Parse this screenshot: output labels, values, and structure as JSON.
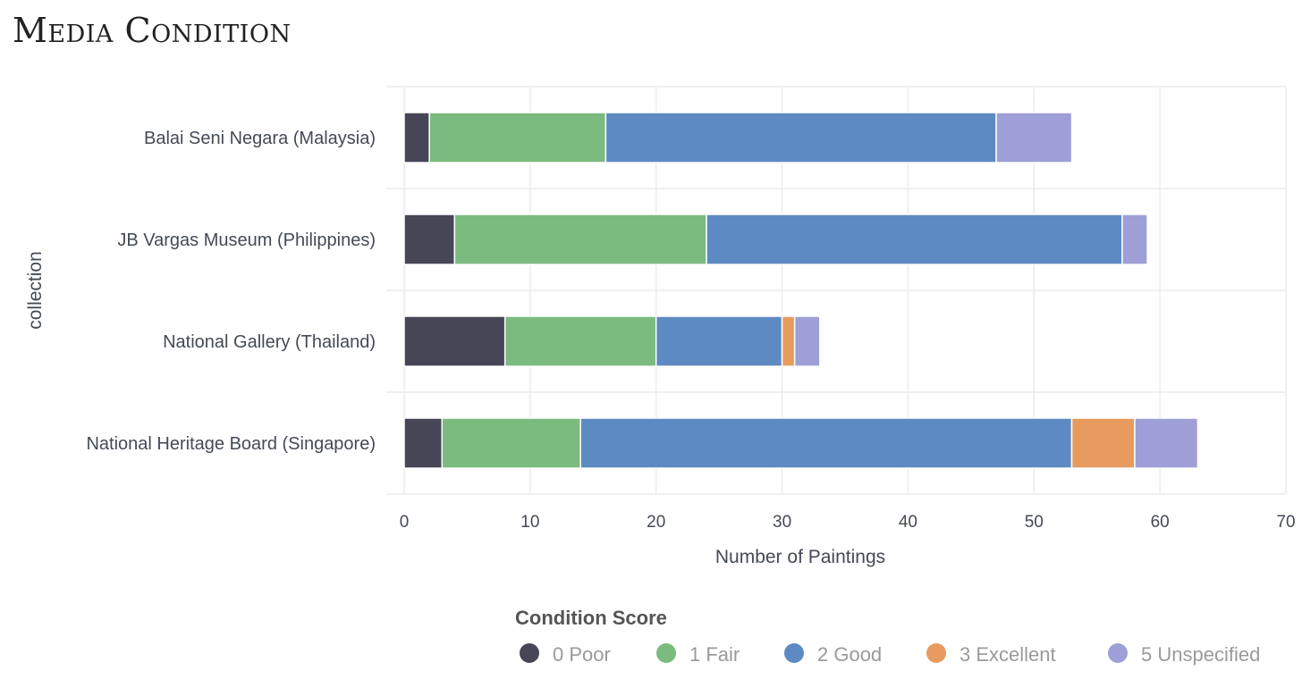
{
  "title": "Media Condition",
  "chart_data": {
    "type": "bar",
    "orientation": "horizontal",
    "stacked": true,
    "categories": [
      "Balai Seni Negara (Malaysia)",
      "JB Vargas Museum (Philippines)",
      "National Gallery (Thailand)",
      "National Heritage Board (Singapore)"
    ],
    "series": [
      {
        "name": "0 Poor",
        "color": "#474657",
        "values": [
          2,
          4,
          8,
          3
        ]
      },
      {
        "name": "1 Fair",
        "color": "#7bbb80",
        "values": [
          14,
          20,
          12,
          11
        ]
      },
      {
        "name": "2 Good",
        "color": "#5e8ac3",
        "values": [
          31,
          33,
          10,
          39
        ]
      },
      {
        "name": "3 Excellent",
        "color": "#e89b5e",
        "values": [
          0,
          0,
          1,
          5
        ]
      },
      {
        "name": "5 Unspecified",
        "color": "#9e9fd6",
        "values": [
          6,
          2,
          2,
          5
        ]
      }
    ],
    "xlabel": "Number of Paintings",
    "ylabel": "collection",
    "xlim": [
      0,
      70
    ],
    "xticks": [
      0,
      10,
      20,
      30,
      40,
      50,
      60,
      70
    ],
    "grid": true,
    "legend": {
      "title": "Condition Score",
      "position": "bottom"
    }
  }
}
